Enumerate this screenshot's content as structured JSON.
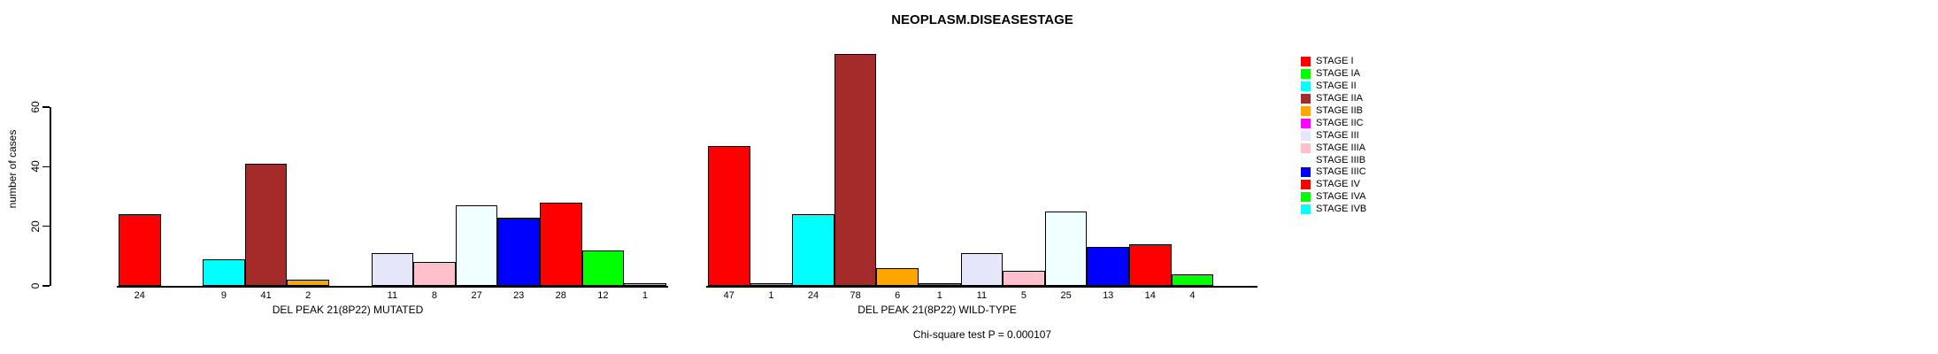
{
  "title": "NEOPLASM.DISEASESTAGE",
  "ylabel": "number of cases",
  "footer": "Chi-square test P = 0.000107",
  "chart_data": {
    "type": "bar",
    "title": "NEOPLASM.DISEASESTAGE",
    "ylabel": "number of cases",
    "ylim": [
      0,
      78
    ],
    "yticks": [
      0,
      20,
      40,
      60
    ],
    "grid": false,
    "legend_position": "right",
    "categories": [
      "STAGE I",
      "STAGE IA",
      "STAGE II",
      "STAGE IIA",
      "STAGE IIB",
      "STAGE IIC",
      "STAGE III",
      "STAGE IIIA",
      "STAGE IIIB",
      "STAGE IIIC",
      "STAGE IV",
      "STAGE IVA",
      "STAGE IVB"
    ],
    "colors": [
      "#FF0000",
      "#00FF00",
      "#00FFFF",
      "#A52A2A",
      "#FFA500",
      "#FF00FF",
      "#E6E6FA",
      "#FFC0CB",
      "#F0FFFF",
      "#0000FF",
      "#FF0000",
      "#00FF00",
      "#00FFFF"
    ],
    "series": [
      {
        "name": "DEL PEAK 21(8P22) MUTATED",
        "values": [
          24,
          0,
          9,
          41,
          2,
          0,
          11,
          8,
          27,
          23,
          28,
          12,
          1
        ]
      },
      {
        "name": "DEL PEAK 21(8P22) WILD-TYPE",
        "values": [
          47,
          1,
          24,
          78,
          6,
          1,
          11,
          5,
          25,
          13,
          14,
          4,
          0
        ]
      }
    ],
    "bar_value_labels": "shown under each bar; zero-count bars have no bar and no label",
    "annotation": "Chi-square test P = 0.000107"
  },
  "legend": {
    "entries": [
      {
        "label": "STAGE I",
        "color": "#FF0000"
      },
      {
        "label": "STAGE IA",
        "color": "#00FF00"
      },
      {
        "label": "STAGE II",
        "color": "#00FFFF"
      },
      {
        "label": "STAGE IIA",
        "color": "#A52A2A"
      },
      {
        "label": "STAGE IIB",
        "color": "#FFA500"
      },
      {
        "label": "STAGE IIC",
        "color": "#FF00FF"
      },
      {
        "label": "STAGE III",
        "color": "#E6E6FA"
      },
      {
        "label": "STAGE IIIA",
        "color": "#FFC0CB"
      },
      {
        "label": "STAGE IIIB",
        "color": "#F0FFFF"
      },
      {
        "label": "STAGE IIIC",
        "color": "#0000FF"
      },
      {
        "label": "STAGE IV",
        "color": "#FF0000"
      },
      {
        "label": "STAGE IVA",
        "color": "#00FF00"
      },
      {
        "label": "STAGE IVB",
        "color": "#00FFFF"
      }
    ]
  }
}
